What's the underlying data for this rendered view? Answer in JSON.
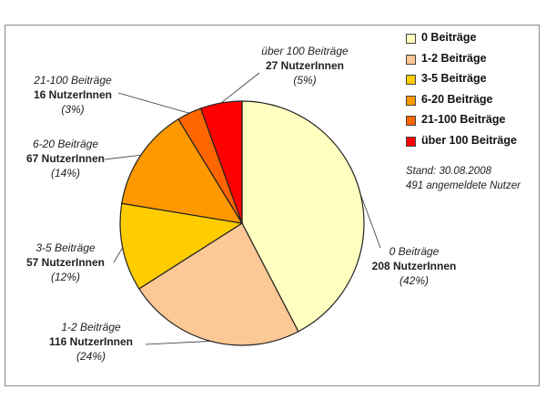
{
  "chart_data": {
    "type": "pie",
    "slices": [
      {
        "category": "0 Beiträge",
        "count_label": "208 NutzerInnen",
        "value": 208,
        "percent_label": "(42%)",
        "color": "#FFFFC0"
      },
      {
        "category": "1-2 Beiträge",
        "count_label": "116 NutzerInnen",
        "value": 116,
        "percent_label": "(24%)",
        "color": "#FCC896"
      },
      {
        "category": "3-5 Beiträge",
        "count_label": "57 NutzerInnen",
        "value": 57,
        "percent_label": "(12%)",
        "color": "#FFCC00"
      },
      {
        "category": "6-20 Beiträge",
        "count_label": "67 NutzerInnen",
        "value": 67,
        "percent_label": "(14%)",
        "color": "#FF9900"
      },
      {
        "category": "21-100 Beiträge",
        "count_label": "16 NutzerInnen",
        "value": 16,
        "percent_label": "(3%)",
        "color": "#FF6600"
      },
      {
        "category": "über 100 Beiträge",
        "count_label": "27 NutzerInnen",
        "value": 27,
        "percent_label": "(5%)",
        "color": "#FF0000"
      }
    ],
    "legend_placement": "right"
  },
  "note": {
    "line1": "Stand: 30.08.2008",
    "line2": "491 angemeldete Nutzer"
  }
}
